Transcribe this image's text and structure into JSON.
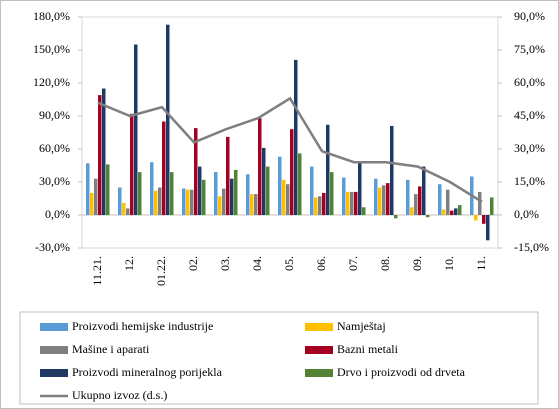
{
  "chart_data": {
    "type": "bar_line",
    "categories": [
      "11.21.",
      "12.",
      "01.22.",
      "02.",
      "03.",
      "04.",
      "05.",
      "06.",
      "07.",
      "08.",
      "09.",
      "10.",
      "11."
    ],
    "series": [
      {
        "name": "Proizvodi hemijske industrije",
        "color": "#5b9bd5",
        "values": [
          47,
          25,
          48,
          24,
          39,
          37,
          53,
          44,
          34,
          33,
          32,
          28,
          35
        ]
      },
      {
        "name": "Namještaj",
        "color": "#ffc000",
        "values": [
          20,
          11,
          22,
          23,
          17,
          19,
          32,
          16,
          21,
          25,
          7,
          5,
          -5
        ]
      },
      {
        "name": "Mašine i aparati",
        "color": "#7f7f7f",
        "values": [
          33,
          6,
          25,
          23,
          24,
          19,
          28,
          17,
          21,
          27,
          19,
          23,
          21
        ]
      },
      {
        "name": "Bazni metali",
        "color": "#a50021",
        "values": [
          109,
          92,
          85,
          79,
          71,
          88,
          78,
          20,
          21,
          29,
          26,
          4,
          -8
        ]
      },
      {
        "name": "Proizvodi mineralnog porijekla",
        "color": "#1f3864",
        "values": [
          115,
          155,
          173,
          44,
          33,
          61,
          141,
          82,
          47,
          81,
          44,
          6,
          -23
        ]
      },
      {
        "name": "Drvo i proizvodi od drveta",
        "color": "#548235",
        "values": [
          46,
          39,
          39,
          32,
          41,
          44,
          56,
          39,
          7,
          -3,
          -2,
          9,
          16
        ]
      },
      {
        "name": "Ukupno izvoz (d.s.)",
        "color": "#7f7f7f",
        "axis": "y2",
        "values": [
          51,
          45,
          49,
          33,
          39,
          44,
          53,
          29,
          24,
          24,
          22,
          15,
          6
        ]
      }
    ],
    "ylim": [
      -30,
      180
    ],
    "yticks": [
      {
        "value": -30,
        "label": "-30,0%"
      },
      {
        "value": 0,
        "label": "0,0%"
      },
      {
        "value": 30,
        "label": "30,0%"
      },
      {
        "value": 60,
        "label": "60,0%"
      },
      {
        "value": 90,
        "label": "90,0%"
      },
      {
        "value": 120,
        "label": "120,0%"
      },
      {
        "value": 150,
        "label": "150,0%"
      },
      {
        "value": 180,
        "label": "180,0%"
      }
    ],
    "y2lim": [
      -15,
      90
    ],
    "y2ticks": [
      {
        "value": -15,
        "label": "-15,0%"
      },
      {
        "value": 0,
        "label": "0,0%"
      },
      {
        "value": 15,
        "label": "15,0%"
      },
      {
        "value": 30,
        "label": "30,0%"
      },
      {
        "value": 45,
        "label": "45,0%"
      },
      {
        "value": 60,
        "label": "60,0%"
      },
      {
        "value": 75,
        "label": "75,0%"
      },
      {
        "value": 90,
        "label": "90,0%"
      }
    ]
  }
}
